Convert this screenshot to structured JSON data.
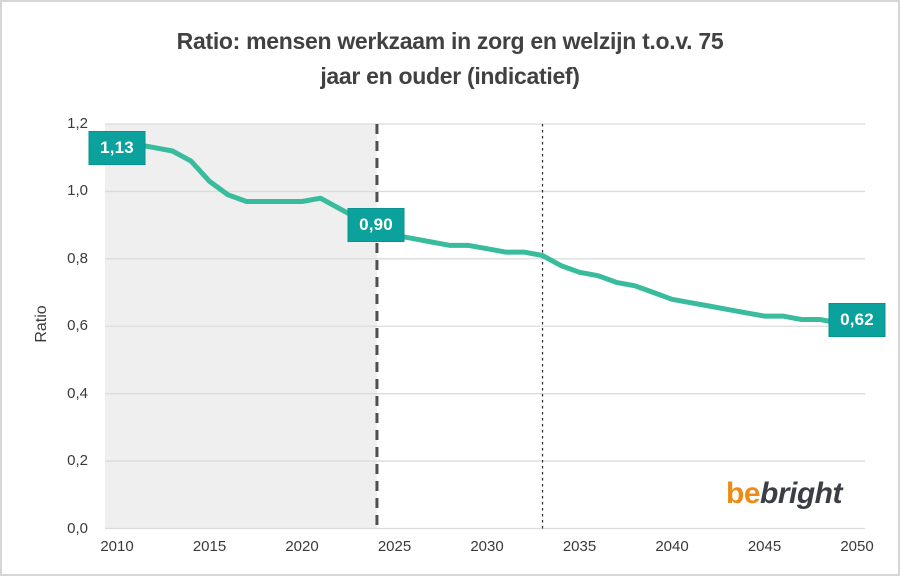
{
  "title": {
    "line1": "Ratio: mensen werkzaam in zorg en welzijn t.o.v. 75",
    "line2": "jaar en ouder (indicatief)"
  },
  "chart_data": {
    "type": "line",
    "title": "Ratio: mensen werkzaam in zorg en welzijn t.o.v. 75 jaar en ouder (indicatief)",
    "xlabel": "",
    "ylabel": "Ratio",
    "ylim": [
      0,
      1.2
    ],
    "xlim": [
      2009.35,
      2050.43
    ],
    "grid": "horizontal-only",
    "legend": "none",
    "grid_color": "#dcdcdc",
    "y_ticks": [
      {
        "value": 0.0,
        "label": "0,0"
      },
      {
        "value": 0.2,
        "label": "0,2"
      },
      {
        "value": 0.4,
        "label": "0,4"
      },
      {
        "value": 0.6,
        "label": "0,6"
      },
      {
        "value": 0.8,
        "label": "0,8"
      },
      {
        "value": 1.0,
        "label": "1,0"
      },
      {
        "value": 1.2,
        "label": "1,2"
      }
    ],
    "x_ticks": [
      {
        "value": 2010,
        "label": "2010"
      },
      {
        "value": 2015,
        "label": "2015"
      },
      {
        "value": 2020,
        "label": "2020"
      },
      {
        "value": 2025,
        "label": "2025"
      },
      {
        "value": 2030,
        "label": "2030"
      },
      {
        "value": 2035,
        "label": "2035"
      },
      {
        "value": 2040,
        "label": "2040"
      },
      {
        "value": 2045,
        "label": "2045"
      },
      {
        "value": 2050,
        "label": "2050"
      }
    ],
    "shaded_region": {
      "x_start": 2009.35,
      "x_end": 2024.05,
      "color": "#efefef"
    },
    "vlines": [
      {
        "x": 2024.05,
        "stroke": "#4f4f4f",
        "width": 3,
        "dash": "10 7",
        "style": "dashed-thick"
      },
      {
        "x": 2033,
        "stroke": "#2b2b2b",
        "width": 1.2,
        "dash": "2.5 3.5",
        "style": "dotted-thin"
      }
    ],
    "series": [
      {
        "name": "Ratio",
        "color": "#39bc9d",
        "x": [
          2010,
          2011,
          2012,
          2013,
          2014,
          2015,
          2016,
          2017,
          2018,
          2019,
          2020,
          2021,
          2022,
          2023,
          2024,
          2025,
          2026,
          2027,
          2028,
          2029,
          2030,
          2031,
          2032,
          2033,
          2034,
          2035,
          2036,
          2037,
          2038,
          2039,
          2040,
          2041,
          2042,
          2043,
          2044,
          2045,
          2046,
          2047,
          2048,
          2049,
          2050
        ],
        "y": [
          1.13,
          1.14,
          1.13,
          1.12,
          1.09,
          1.03,
          0.99,
          0.97,
          0.97,
          0.97,
          0.97,
          0.98,
          0.95,
          0.92,
          0.9,
          0.87,
          0.86,
          0.85,
          0.84,
          0.84,
          0.83,
          0.82,
          0.82,
          0.81,
          0.78,
          0.76,
          0.75,
          0.73,
          0.72,
          0.7,
          0.68,
          0.67,
          0.66,
          0.65,
          0.64,
          0.63,
          0.63,
          0.62,
          0.62,
          0.61,
          0.62
        ]
      }
    ],
    "annotations": [
      {
        "x": 2010,
        "y": 1.13,
        "label": "1,13"
      },
      {
        "x": 2024,
        "y": 0.9,
        "label": "0,90"
      },
      {
        "x": 2050,
        "y": 0.62,
        "label": "0,62"
      }
    ],
    "annotation_style": {
      "bg": "#0ba19c",
      "border": "#089390",
      "text": "#ffffff"
    }
  },
  "logo": {
    "be": "be",
    "bright": "bright",
    "be_color": "#ed8b16",
    "bright_color": "#3b3e44"
  }
}
